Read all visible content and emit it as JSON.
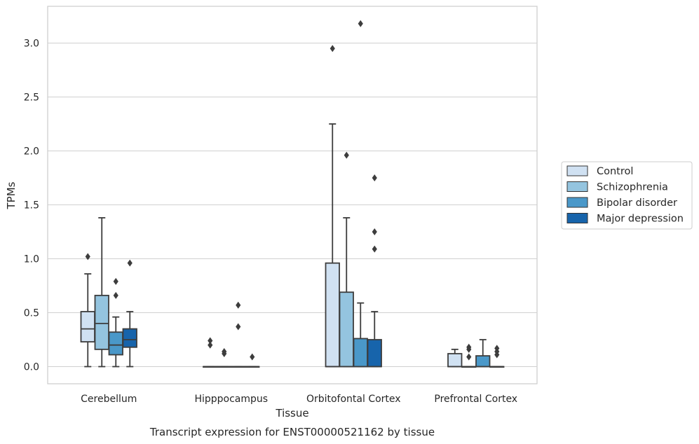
{
  "chart_data": {
    "type": "box",
    "title": "",
    "caption": "Transcript expression for ENST00000521162 by tissue",
    "xlabel": "Tissue",
    "ylabel": "TPMs",
    "ylim": [
      -0.155,
      3.35
    ],
    "yticks": [
      0.0,
      0.5,
      1.0,
      1.5,
      2.0,
      2.5,
      3.0
    ],
    "ytick_labels": [
      "0.0",
      "0.5",
      "1.0",
      "1.5",
      "2.0",
      "2.5",
      "3.0"
    ],
    "categories": [
      "Cerebellum",
      "Hipppocampus",
      "Orbitofontal Cortex",
      "Prefrontal Cortex"
    ],
    "grid": "horizontal",
    "legend_position": "right",
    "series": [
      {
        "name": "Control",
        "color": "#d0e1f2",
        "boxes": [
          {
            "q1": 0.23,
            "median": 0.35,
            "q3": 0.51,
            "whisker_low": 0.0,
            "whisker_high": 0.86,
            "outliers": [
              1.02
            ]
          },
          {
            "q1": 0.0,
            "median": 0.0,
            "q3": 0.0,
            "whisker_low": 0.0,
            "whisker_high": 0.0,
            "outliers": [
              0.2,
              0.24
            ]
          },
          {
            "q1": 0.0,
            "median": 0.0,
            "q3": 0.96,
            "whisker_low": 0.0,
            "whisker_high": 2.25,
            "outliers": [
              2.95
            ]
          },
          {
            "q1": 0.0,
            "median": 0.0,
            "q3": 0.12,
            "whisker_low": 0.0,
            "whisker_high": 0.16,
            "outliers": []
          }
        ]
      },
      {
        "name": "Schizophrenia",
        "color": "#94c4df",
        "boxes": [
          {
            "q1": 0.16,
            "median": 0.4,
            "q3": 0.66,
            "whisker_low": 0.0,
            "whisker_high": 1.38,
            "outliers": []
          },
          {
            "q1": 0.0,
            "median": 0.0,
            "q3": 0.0,
            "whisker_low": 0.0,
            "whisker_high": 0.0,
            "outliers": [
              0.12,
              0.14
            ]
          },
          {
            "q1": 0.0,
            "median": 0.0,
            "q3": 0.69,
            "whisker_low": 0.0,
            "whisker_high": 1.38,
            "outliers": [
              1.96
            ]
          },
          {
            "q1": 0.0,
            "median": 0.0,
            "q3": 0.0,
            "whisker_low": 0.0,
            "whisker_high": 0.0,
            "outliers": [
              0.09,
              0.16,
              0.18
            ]
          }
        ]
      },
      {
        "name": "Bipolar disorder",
        "color": "#4a98c9",
        "boxes": [
          {
            "q1": 0.11,
            "median": 0.2,
            "q3": 0.32,
            "whisker_low": 0.0,
            "whisker_high": 0.46,
            "outliers": [
              0.66,
              0.79
            ]
          },
          {
            "q1": 0.0,
            "median": 0.0,
            "q3": 0.0,
            "whisker_low": 0.0,
            "whisker_high": 0.0,
            "outliers": [
              0.37,
              0.57
            ]
          },
          {
            "q1": 0.0,
            "median": 0.0,
            "q3": 0.26,
            "whisker_low": 0.0,
            "whisker_high": 0.59,
            "outliers": [
              3.18
            ]
          },
          {
            "q1": 0.0,
            "median": 0.0,
            "q3": 0.1,
            "whisker_low": 0.0,
            "whisker_high": 0.25,
            "outliers": []
          }
        ]
      },
      {
        "name": "Major depression",
        "color": "#1764ab",
        "boxes": [
          {
            "q1": 0.18,
            "median": 0.25,
            "q3": 0.35,
            "whisker_low": 0.0,
            "whisker_high": 0.51,
            "outliers": [
              0.96
            ]
          },
          {
            "q1": 0.0,
            "median": 0.0,
            "q3": 0.0,
            "whisker_low": 0.0,
            "whisker_high": 0.0,
            "outliers": [
              0.09
            ]
          },
          {
            "q1": 0.0,
            "median": 0.0,
            "q3": 0.25,
            "whisker_low": 0.0,
            "whisker_high": 0.51,
            "outliers": [
              1.09,
              1.25,
              1.75
            ]
          },
          {
            "q1": 0.0,
            "median": 0.0,
            "q3": 0.0,
            "whisker_low": 0.0,
            "whisker_high": 0.0,
            "outliers": [
              0.11,
              0.14,
              0.17
            ]
          }
        ]
      }
    ]
  }
}
